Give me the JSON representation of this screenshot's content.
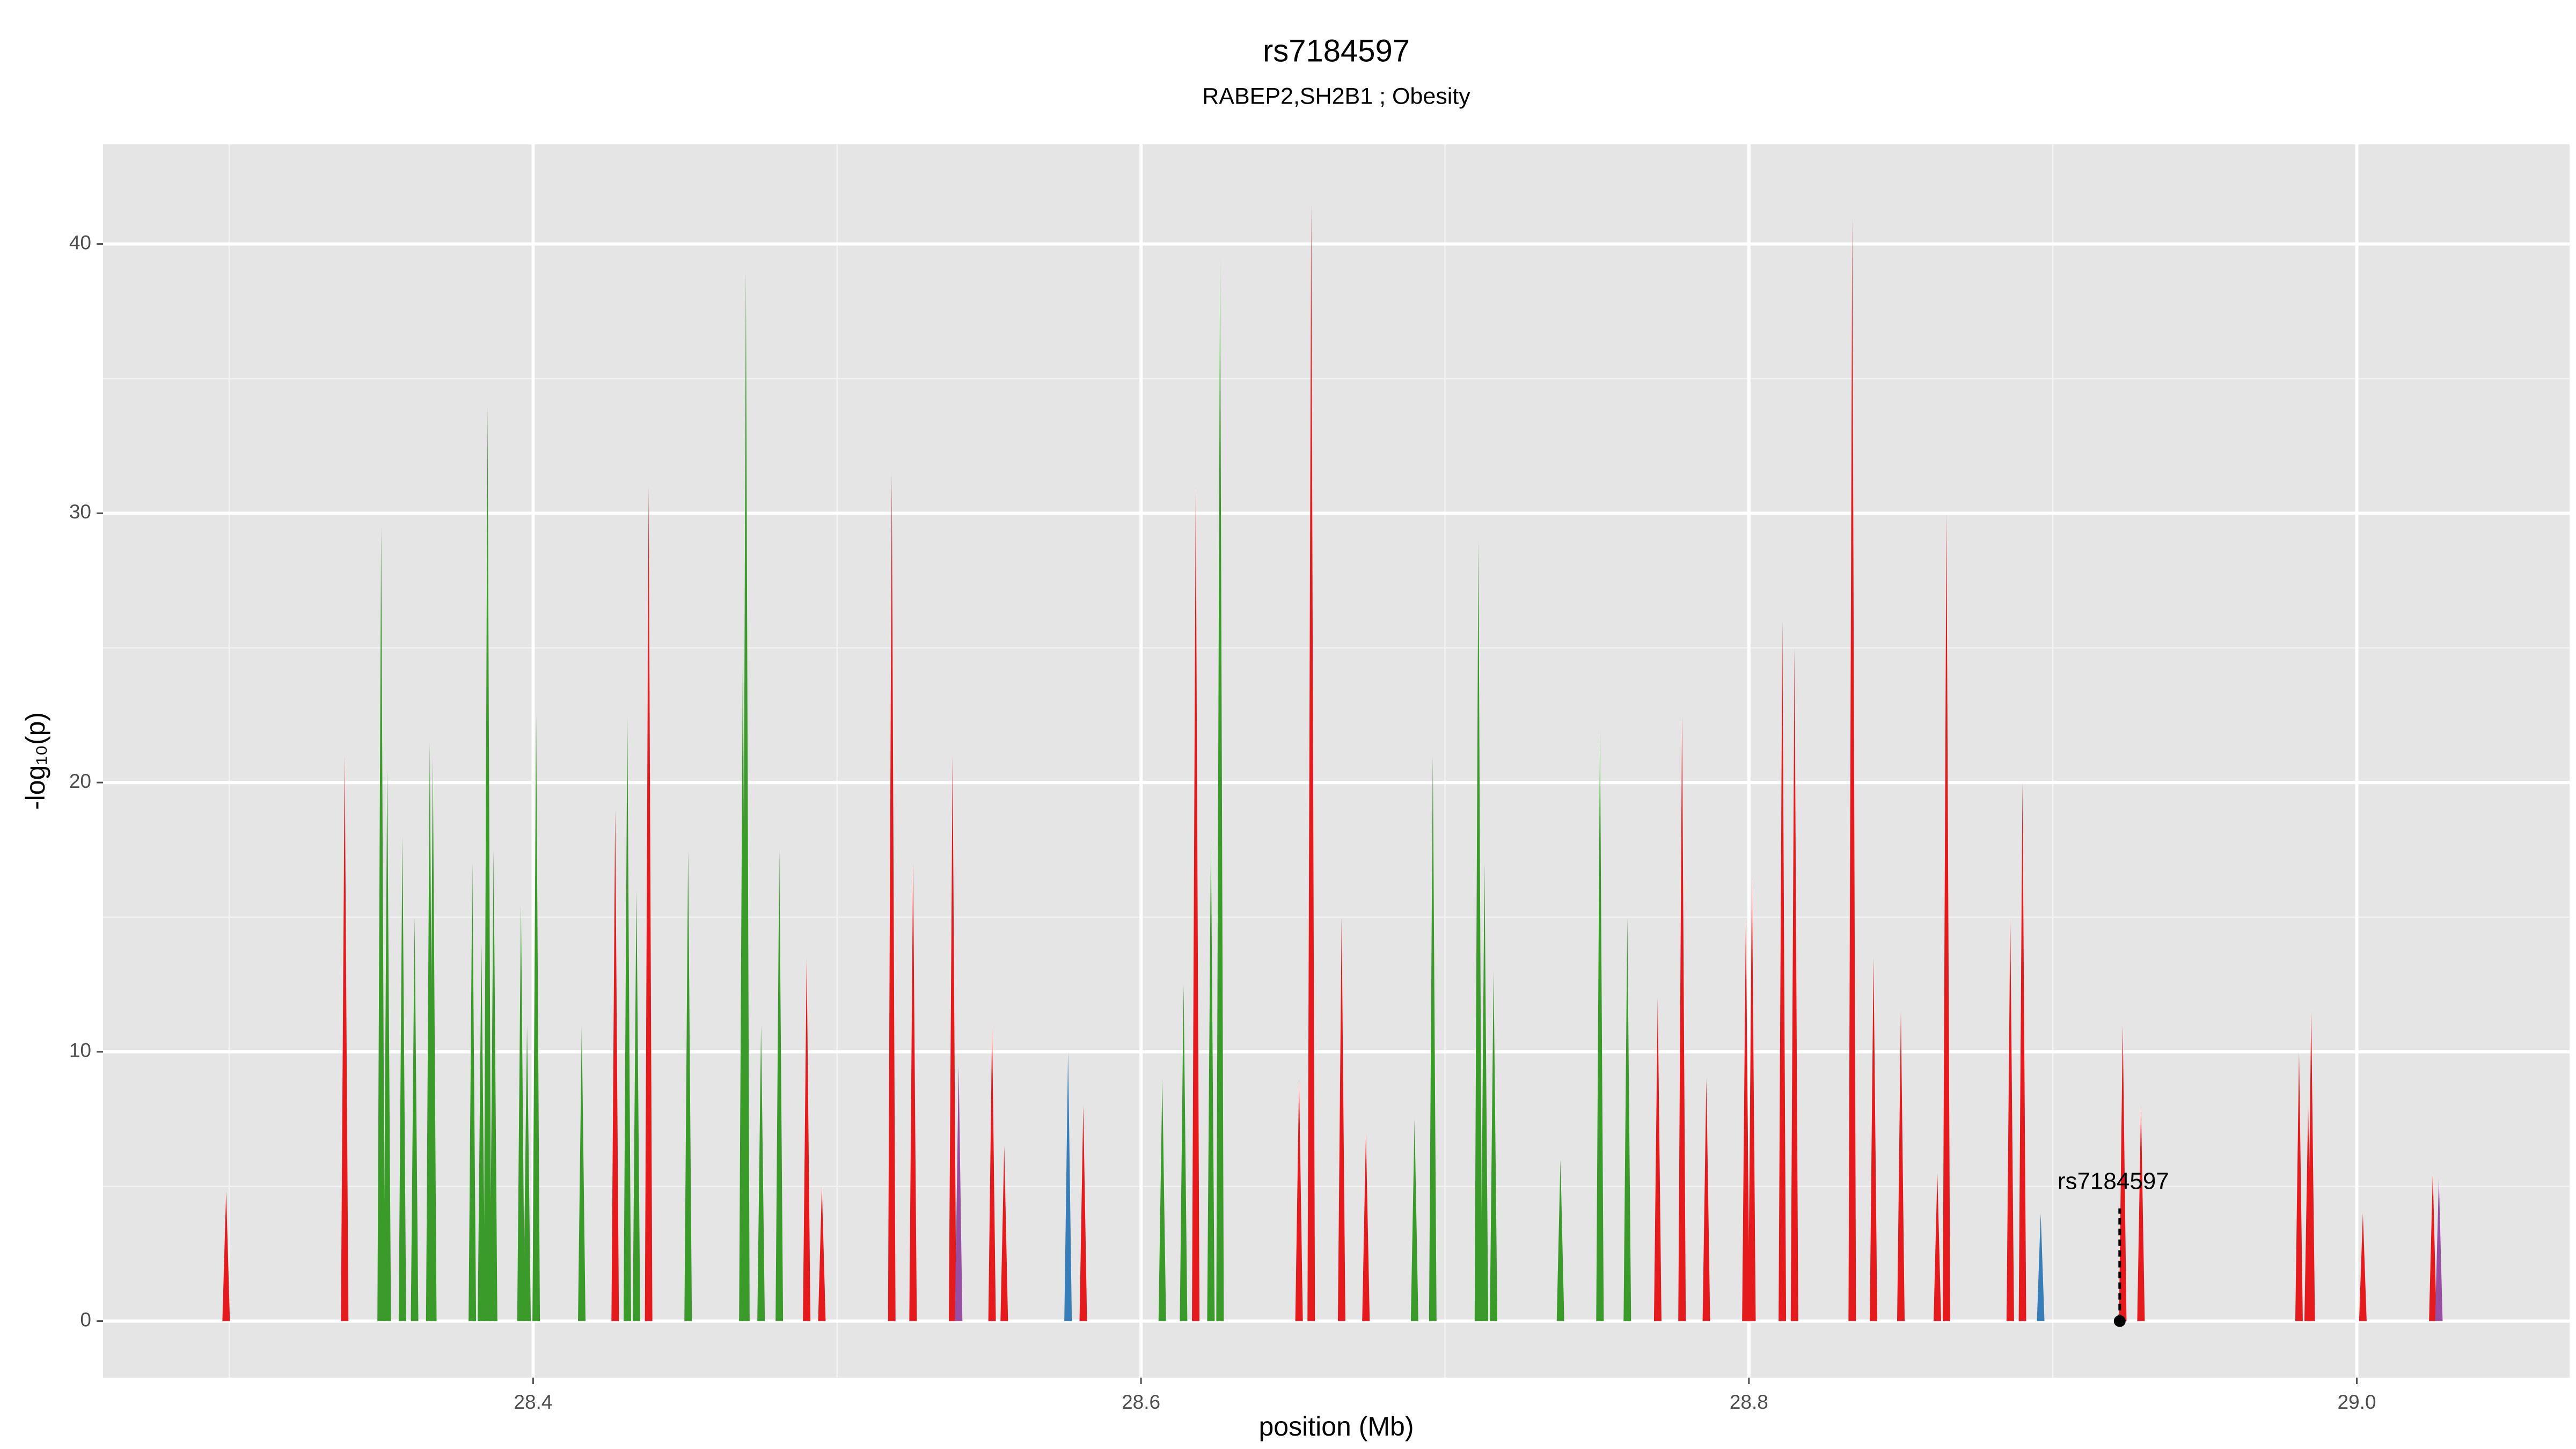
{
  "chart_data": {
    "type": "spike",
    "title": "rs7184597",
    "subtitle": "RABEP2,SH2B1 ; Obesity",
    "x_label": "position (Mb)",
    "y_label": "-log₁₀(p)",
    "xlim": [
      28.2585,
      29.07
    ],
    "ylim": [
      -2.1,
      43.7
    ],
    "xticks": [
      28.4,
      28.6,
      28.8,
      {
        "value": 29.0,
        "label": "29.0"
      }
    ],
    "yticks": [
      0,
      10,
      20,
      30,
      40
    ],
    "x_minor_grid": [
      28.3,
      28.5,
      28.7,
      28.9
    ],
    "y_minor_grid": [
      5,
      15,
      25,
      35
    ],
    "grid": true,
    "series": [
      {
        "color": "#3a9a2a",
        "x": [
          28.35,
          28.352,
          28.357,
          28.361,
          28.366,
          28.367,
          28.38,
          28.383,
          28.385,
          28.387,
          28.396,
          28.398,
          28.401,
          28.416,
          28.431,
          28.434,
          28.451,
          28.469,
          28.47,
          28.475,
          28.481,
          28.607,
          28.614,
          28.623,
          28.626,
          28.69,
          28.696,
          28.711,
          28.713,
          28.716,
          28.738,
          28.751,
          28.76
        ],
        "values": [
          29.5,
          20.5,
          18,
          15,
          21.5,
          21,
          17,
          14,
          34,
          17.5,
          15.5,
          11,
          22.5,
          11,
          22.5,
          16,
          17.5,
          25,
          39,
          11,
          17.5,
          9,
          12.5,
          18,
          39.5,
          7.5,
          21,
          29,
          17,
          13,
          6,
          22,
          15
        ]
      },
      {
        "color": "#e41a1c",
        "x": [
          28.299,
          28.338,
          28.427,
          28.438,
          28.49,
          28.495,
          28.518,
          28.525,
          28.538,
          28.551,
          28.555,
          28.581,
          28.618,
          28.652,
          28.656,
          28.666,
          28.674,
          28.77,
          28.778,
          28.786,
          28.799,
          28.801,
          28.811,
          28.815,
          28.834,
          28.841,
          28.85,
          28.862,
          28.865,
          28.886,
          28.89,
          28.923,
          28.929,
          28.981,
          28.984,
          28.985,
          29.002,
          29.025
        ],
        "values": [
          4.8,
          21,
          19,
          31,
          13.5,
          5,
          31.5,
          17,
          21,
          11,
          6.5,
          8,
          31,
          9,
          41.5,
          15,
          7,
          12,
          22.5,
          9,
          15,
          16.5,
          26,
          25,
          41,
          13.5,
          11.5,
          5.5,
          30,
          15,
          20,
          11,
          8,
          10,
          8,
          11.5,
          4,
          5.5
        ]
      },
      {
        "color": "#984ea3",
        "x": [
          28.54,
          29.027
        ],
        "values": [
          9.5,
          5.3
        ]
      },
      {
        "color": "#377eb8",
        "x": [
          28.576,
          28.896
        ],
        "values": [
          10,
          4
        ]
      }
    ],
    "annotation": {
      "label": "rs7184597",
      "x": 28.922,
      "y": 0
    }
  }
}
